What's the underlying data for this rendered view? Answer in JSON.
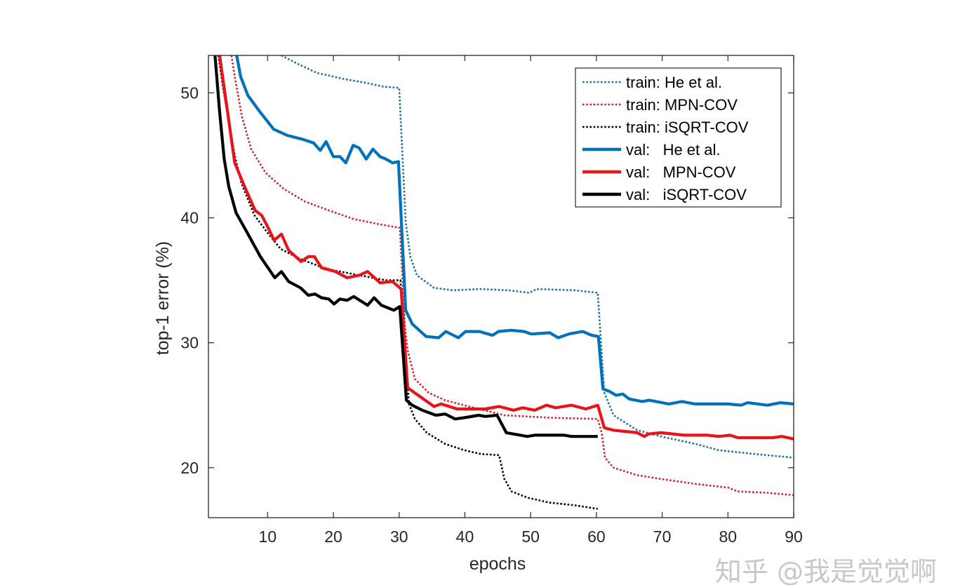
{
  "chart_data": {
    "type": "line",
    "title": "",
    "xlabel": "epochs",
    "ylabel": "top-1 error (%)",
    "xlim": [
      1,
      90
    ],
    "ylim": [
      16,
      53
    ],
    "xticks": [
      10,
      20,
      30,
      40,
      50,
      60,
      70,
      80,
      90
    ],
    "yticks": [
      20,
      30,
      40,
      50
    ],
    "grid": false,
    "legend_position": "top-right",
    "series": [
      {
        "name": "train: He et al.",
        "style": "dotted",
        "color": "#1f6fa3",
        "points": [
          [
            12.1,
            53
          ],
          [
            14.3,
            52.4
          ],
          [
            17.5,
            51.6
          ],
          [
            21.7,
            51.1
          ],
          [
            25,
            50.8
          ],
          [
            27.6,
            50.5
          ],
          [
            30,
            50.4
          ],
          [
            31,
            39.7
          ],
          [
            31.7,
            36.9
          ],
          [
            32.7,
            35.4
          ],
          [
            35.3,
            34.4
          ],
          [
            38.1,
            34.2
          ],
          [
            42.3,
            34.3
          ],
          [
            46.6,
            34.2
          ],
          [
            49.8,
            34.0
          ],
          [
            50.9,
            34.3
          ],
          [
            56.6,
            34.2
          ],
          [
            60.2,
            34.0
          ],
          [
            61.2,
            26.0
          ],
          [
            62.6,
            24.2
          ],
          [
            66.2,
            23.0
          ],
          [
            69.8,
            22.5
          ],
          [
            75.1,
            21.9
          ],
          [
            78.6,
            21.4
          ],
          [
            84,
            21.1
          ],
          [
            90,
            20.8
          ]
        ]
      },
      {
        "name": "train: MPN-COV",
        "style": "dotted",
        "color": "#d0242b",
        "points": [
          [
            4.5,
            53
          ],
          [
            5,
            51.3
          ],
          [
            6.1,
            48.1
          ],
          [
            7.5,
            45.5
          ],
          [
            9.7,
            43.6
          ],
          [
            12.5,
            42.3
          ],
          [
            15.7,
            41.3
          ],
          [
            19.3,
            40.6
          ],
          [
            23.1,
            39.9
          ],
          [
            26.8,
            39.5
          ],
          [
            30.1,
            39.2
          ],
          [
            30.9,
            31.2
          ],
          [
            31.3,
            29.4
          ],
          [
            32.4,
            27.1
          ],
          [
            34.5,
            26.0
          ],
          [
            37,
            25.4
          ],
          [
            40.6,
            24.9
          ],
          [
            46,
            24.2
          ],
          [
            53,
            24.0
          ],
          [
            60.2,
            23.9
          ],
          [
            60.8,
            22.8
          ],
          [
            61.3,
            20.8
          ],
          [
            62.6,
            20.0
          ],
          [
            66.2,
            19.4
          ],
          [
            69.8,
            19.1
          ],
          [
            75.1,
            18.7
          ],
          [
            80.1,
            18.4
          ],
          [
            81.5,
            18.1
          ],
          [
            85.8,
            18.0
          ],
          [
            90,
            17.8
          ]
        ]
      },
      {
        "name": "train: iSQRT-COV",
        "style": "dotted",
        "color": "#000000",
        "points": [
          [
            2.5,
            53
          ],
          [
            3.2,
            50.5
          ],
          [
            4,
            48
          ],
          [
            5,
            45
          ],
          [
            6,
            42.8
          ],
          [
            8,
            40.2
          ],
          [
            10,
            38.8
          ],
          [
            12,
            37.5
          ],
          [
            15,
            36.7
          ],
          [
            18,
            36.1
          ],
          [
            20,
            35.8
          ],
          [
            25,
            35.3
          ],
          [
            28,
            35.0
          ],
          [
            30.2,
            35.0
          ],
          [
            31.5,
            25.1
          ],
          [
            32.4,
            23.9
          ],
          [
            34.2,
            22.8
          ],
          [
            37,
            21.9
          ],
          [
            39.9,
            21.4
          ],
          [
            42.4,
            21.1
          ],
          [
            45.2,
            21.0
          ],
          [
            46,
            19.1
          ],
          [
            47.1,
            18.1
          ],
          [
            49.5,
            17.6
          ],
          [
            52.9,
            17.2
          ],
          [
            56.6,
            17.0
          ],
          [
            60.2,
            16.7
          ]
        ]
      },
      {
        "name": "val:   He et al.",
        "style": "solid",
        "color": "#0072bd",
        "points": [
          [
            5.3,
            53
          ],
          [
            5.9,
            51.3
          ],
          [
            7,
            49.8
          ],
          [
            8.8,
            48.5
          ],
          [
            10.9,
            47.1
          ],
          [
            13,
            46.6
          ],
          [
            15.2,
            46.3
          ],
          [
            17,
            46.0
          ],
          [
            18,
            45.4
          ],
          [
            18.9,
            46.1
          ],
          [
            20,
            44.9
          ],
          [
            21,
            44.9
          ],
          [
            21.9,
            44.4
          ],
          [
            23,
            45.8
          ],
          [
            23.9,
            45.6
          ],
          [
            25,
            44.7
          ],
          [
            26,
            45.5
          ],
          [
            27.1,
            44.9
          ],
          [
            28,
            44.7
          ],
          [
            29,
            44.4
          ],
          [
            29.9,
            44.5
          ],
          [
            31,
            32.6
          ],
          [
            32,
            31.5
          ],
          [
            34.1,
            30.5
          ],
          [
            36,
            30.4
          ],
          [
            37.1,
            30.9
          ],
          [
            39,
            30.4
          ],
          [
            40.1,
            30.9
          ],
          [
            42.2,
            30.9
          ],
          [
            44.2,
            30.6
          ],
          [
            45.1,
            30.9
          ],
          [
            47,
            31.0
          ],
          [
            49,
            30.9
          ],
          [
            50.1,
            30.7
          ],
          [
            52.9,
            30.8
          ],
          [
            54.2,
            30.4
          ],
          [
            55.8,
            30.7
          ],
          [
            57.9,
            30.9
          ],
          [
            59.3,
            30.6
          ],
          [
            60.3,
            30.5
          ],
          [
            61,
            26.3
          ],
          [
            62,
            26.1
          ],
          [
            63,
            25.8
          ],
          [
            64,
            25.9
          ],
          [
            65,
            25.5
          ],
          [
            67,
            25.3
          ],
          [
            68,
            25.4
          ],
          [
            70,
            25.2
          ],
          [
            71,
            25.1
          ],
          [
            73,
            25.3
          ],
          [
            75,
            25.1
          ],
          [
            80,
            25.1
          ],
          [
            82,
            25.0
          ],
          [
            83,
            25.2
          ],
          [
            86,
            25.0
          ],
          [
            88,
            25.2
          ],
          [
            90,
            25.1
          ]
        ]
      },
      {
        "name": "val:   MPN-COV",
        "style": "solid",
        "color": "#e8141a",
        "points": [
          [
            2.7,
            53
          ],
          [
            3.9,
            48.5
          ],
          [
            5,
            44.4
          ],
          [
            6.5,
            42.5
          ],
          [
            8.1,
            40.6
          ],
          [
            9.1,
            40.2
          ],
          [
            10,
            39.3
          ],
          [
            11,
            38.2
          ],
          [
            12.1,
            38.7
          ],
          [
            13.2,
            37.4
          ],
          [
            15.1,
            36.5
          ],
          [
            16.2,
            36.9
          ],
          [
            17.1,
            36.9
          ],
          [
            18.2,
            36.0
          ],
          [
            20.3,
            35.7
          ],
          [
            22.1,
            35.2
          ],
          [
            23.9,
            35.4
          ],
          [
            25.2,
            35.7
          ],
          [
            27.1,
            34.8
          ],
          [
            29,
            34.9
          ],
          [
            30.3,
            34.3
          ],
          [
            31.3,
            26.4
          ],
          [
            35.3,
            24.9
          ],
          [
            36.4,
            25.1
          ],
          [
            38.8,
            24.7
          ],
          [
            43.1,
            24.7
          ],
          [
            45.2,
            24.9
          ],
          [
            47.4,
            24.6
          ],
          [
            48.8,
            24.8
          ],
          [
            50.6,
            24.6
          ],
          [
            52.4,
            25.0
          ],
          [
            53.8,
            24.8
          ],
          [
            56.2,
            25.0
          ],
          [
            58.4,
            24.7
          ],
          [
            60.2,
            25.0
          ],
          [
            61.2,
            23.2
          ],
          [
            62.6,
            23.0
          ],
          [
            66.2,
            22.8
          ],
          [
            67.3,
            22.5
          ],
          [
            67.9,
            22.7
          ],
          [
            69.8,
            22.8
          ],
          [
            73.3,
            22.6
          ],
          [
            76.9,
            22.6
          ],
          [
            78.6,
            22.5
          ],
          [
            80.3,
            22.6
          ],
          [
            81.5,
            22.4
          ],
          [
            84,
            22.4
          ],
          [
            86.8,
            22.4
          ],
          [
            88.2,
            22.5
          ],
          [
            90,
            22.3
          ]
        ]
      },
      {
        "name": "val:   iSQRT-COV",
        "style": "solid",
        "color": "#000000",
        "points": [
          [
            2,
            53
          ],
          [
            2.7,
            48.5
          ],
          [
            3.4,
            44.7
          ],
          [
            4.1,
            42.5
          ],
          [
            5.2,
            40.4
          ],
          [
            6.8,
            38.9
          ],
          [
            8.9,
            36.9
          ],
          [
            11.1,
            35.2
          ],
          [
            12.1,
            35.7
          ],
          [
            13.2,
            34.9
          ],
          [
            15,
            34.4
          ],
          [
            16.2,
            33.8
          ],
          [
            17.2,
            33.9
          ],
          [
            18.2,
            33.6
          ],
          [
            19.3,
            33.5
          ],
          [
            20.1,
            33.1
          ],
          [
            21,
            33.5
          ],
          [
            22.1,
            33.4
          ],
          [
            23.1,
            33.7
          ],
          [
            25.2,
            33.0
          ],
          [
            26.2,
            33.6
          ],
          [
            27.3,
            33.0
          ],
          [
            29.2,
            32.6
          ],
          [
            30.1,
            32.9
          ],
          [
            31.1,
            25.4
          ],
          [
            32,
            25.0
          ],
          [
            33.5,
            24.6
          ],
          [
            35.6,
            24.2
          ],
          [
            37,
            24.3
          ],
          [
            38.5,
            23.9
          ],
          [
            39.9,
            24.0
          ],
          [
            42.1,
            24.2
          ],
          [
            43.1,
            24.1
          ],
          [
            44.9,
            24.2
          ],
          [
            46.3,
            22.8
          ],
          [
            49.5,
            22.5
          ],
          [
            50.6,
            22.6
          ],
          [
            55.1,
            22.6
          ],
          [
            56.2,
            22.5
          ],
          [
            60.2,
            22.5
          ]
        ]
      }
    ]
  },
  "watermark": "知乎 @我是觉觉啊"
}
